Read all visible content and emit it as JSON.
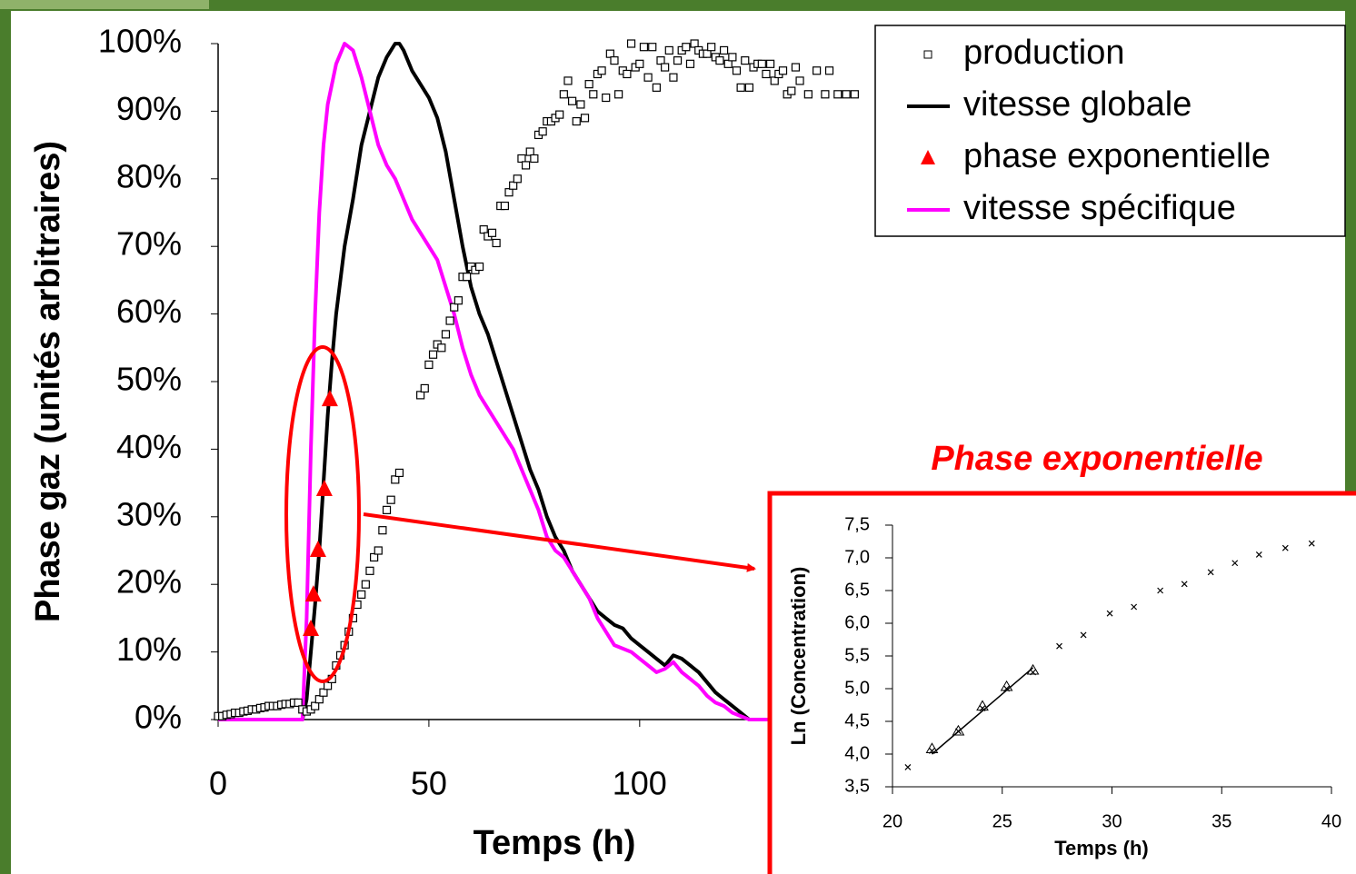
{
  "chart_data": [
    {
      "type": "line",
      "xlabel": "Temps (h)",
      "ylabel": "Phase gaz (unités arbitraires)",
      "xlim": [
        0,
        152
      ],
      "ylim": [
        0,
        100
      ],
      "xticks": [
        0,
        50,
        100
      ],
      "yticks": [
        {
          "value": 0,
          "label": "0%"
        },
        {
          "value": 10,
          "label": "10%"
        },
        {
          "value": 20,
          "label": "20%"
        },
        {
          "value": 30,
          "label": "30%"
        },
        {
          "value": 40,
          "label": "40%"
        },
        {
          "value": 50,
          "label": "50%"
        },
        {
          "value": 60,
          "label": "60%"
        },
        {
          "value": 70,
          "label": "70%"
        },
        {
          "value": 80,
          "label": "80%"
        },
        {
          "value": 90,
          "label": "90%"
        },
        {
          "value": 100,
          "label": "100%"
        }
      ],
      "legend": "top-right",
      "series": [
        {
          "name": "production",
          "type": "scatter",
          "marker": "square",
          "color": "#000000",
          "x": [
            0,
            1,
            2,
            3,
            4,
            5,
            6,
            7,
            8,
            9,
            10,
            11,
            12,
            13,
            14,
            15,
            16,
            17,
            18,
            19,
            20,
            21,
            22,
            23,
            24,
            25,
            26,
            27,
            28,
            29,
            30,
            31,
            32,
            33,
            34,
            35,
            36,
            37,
            38,
            39,
            40,
            41,
            42,
            43,
            48,
            49,
            50,
            51,
            52,
            53,
            54,
            55,
            56,
            57,
            58,
            59,
            60,
            61,
            62,
            63,
            64,
            65,
            66,
            67,
            68,
            69,
            70,
            71,
            72,
            73,
            74,
            75,
            76,
            77,
            78,
            79,
            80,
            81,
            82,
            83,
            84,
            85,
            86,
            87,
            88,
            89,
            90,
            91,
            92,
            93,
            94,
            95,
            96,
            97,
            98,
            99,
            100,
            101,
            102,
            103,
            104,
            105,
            106,
            107,
            108,
            109,
            110,
            111,
            112,
            113,
            114,
            115,
            116,
            117,
            118,
            119,
            120,
            121,
            122,
            123,
            124,
            125,
            126,
            127,
            128,
            129,
            130,
            131,
            132,
            133,
            134,
            135,
            136,
            137,
            138,
            140,
            142,
            144,
            145,
            147,
            149,
            151
          ],
          "values": [
            0.5,
            0.5,
            0.7,
            0.8,
            1,
            1,
            1.2,
            1.3,
            1.5,
            1.5,
            1.7,
            1.8,
            2,
            2,
            2,
            2.2,
            2.3,
            2.3,
            2.5,
            2.5,
            1.5,
            1.2,
            1.5,
            2,
            3,
            4,
            5,
            6,
            8,
            9.5,
            11,
            13,
            15,
            17,
            18.5,
            20,
            22,
            24,
            25,
            28,
            31,
            32.5,
            35.5,
            36.5,
            48,
            49,
            52.5,
            54,
            55.5,
            55,
            57,
            59,
            61,
            62,
            65.5,
            65.5,
            67,
            66.5,
            67,
            72.5,
            71.5,
            72,
            70.5,
            76,
            76,
            78,
            79,
            80,
            83,
            82,
            84,
            83,
            86.5,
            87,
            88.5,
            88.5,
            89,
            89.5,
            92.5,
            94.5,
            91.5,
            88.5,
            91,
            89,
            94,
            92.5,
            95.5,
            96,
            92,
            98.5,
            97.5,
            92.5,
            96,
            95.5,
            100,
            96.5,
            97,
            99.5,
            95,
            99.5,
            93.5,
            97.5,
            96.5,
            99,
            95,
            97.5,
            99,
            99.5,
            97,
            100,
            99,
            98.5,
            98.5,
            99.5,
            98,
            97.5,
            99,
            97,
            98,
            96,
            93.5,
            97.5,
            93.5,
            96.5,
            97,
            97,
            95.5,
            97,
            94.5,
            95.5,
            96,
            92.5,
            93,
            96.5,
            94.5,
            92.5,
            96,
            92.5,
            96,
            92.5,
            92.5,
            92.5
          ]
        },
        {
          "name": "vitesse globale",
          "type": "line",
          "color": "#000000",
          "x": [
            0,
            20,
            21,
            22,
            23,
            24,
            25,
            26,
            27,
            28,
            30,
            32,
            34,
            36,
            38,
            40,
            42,
            43,
            44,
            46,
            48,
            50,
            52,
            54,
            56,
            58,
            60,
            62,
            64,
            66,
            68,
            70,
            72,
            74,
            76,
            78,
            80,
            82,
            84,
            86,
            88,
            90,
            92,
            94,
            96,
            98,
            100,
            102,
            104,
            106,
            108,
            110,
            112,
            114,
            116,
            118,
            120,
            122,
            124,
            126,
            131
          ],
          "values": [
            0,
            0,
            3,
            10,
            17,
            25,
            35,
            45,
            53,
            60,
            70,
            77,
            85,
            90,
            95,
            98,
            100,
            100,
            99,
            96,
            94,
            92,
            89,
            84,
            77,
            70,
            64,
            60,
            57,
            53,
            49,
            45,
            41,
            37,
            34,
            30,
            27,
            25,
            22,
            20,
            18,
            16,
            15,
            14,
            13.5,
            12,
            11,
            10,
            9,
            8,
            9.5,
            9,
            8,
            7,
            5.5,
            4,
            3,
            2,
            1,
            0,
            0
          ]
        },
        {
          "name": "phase exponentielle",
          "type": "scatter",
          "marker": "triangle",
          "color": "#ff0000",
          "x": [
            22,
            22.6,
            23.7,
            25.2,
            26.5
          ],
          "values": [
            13.3,
            18.4,
            25,
            34,
            47.3
          ]
        },
        {
          "name": "vitesse spécifique",
          "type": "line",
          "color": "#ff00ff",
          "x": [
            0,
            20,
            21,
            22,
            23,
            24,
            25,
            26,
            28,
            30,
            32,
            34,
            36,
            38,
            40,
            42,
            44,
            46,
            48,
            50,
            52,
            54,
            56,
            58,
            60,
            62,
            64,
            66,
            68,
            70,
            72,
            74,
            76,
            78,
            80,
            82,
            84,
            86,
            88,
            90,
            92,
            94,
            96,
            98,
            100,
            102,
            104,
            106,
            108,
            110,
            112,
            114,
            116,
            118,
            120,
            122,
            124,
            126,
            131
          ],
          "values": [
            0,
            0,
            15,
            40,
            60,
            75,
            85,
            91,
            97,
            100,
            99,
            95,
            90,
            85,
            82,
            80,
            77,
            74,
            72,
            70,
            68,
            64,
            60,
            55,
            51,
            48,
            46,
            44,
            42,
            40,
            37,
            34,
            31,
            27,
            25,
            24,
            22,
            20,
            18,
            15,
            13,
            11,
            10.5,
            10,
            9,
            8,
            7,
            7.5,
            8.5,
            7,
            6,
            5,
            3.5,
            2.5,
            2,
            1,
            0.5,
            0,
            0
          ]
        }
      ]
    },
    {
      "type": "line",
      "title": "Phase exponentielle",
      "xlabel": "Temps (h)",
      "ylabel": "Ln (Concentration)",
      "xlim": [
        20,
        40
      ],
      "ylim": [
        3.5,
        7.5
      ],
      "xticks": [
        20,
        25,
        30,
        35,
        40
      ],
      "yticks": [
        {
          "value": 3.5,
          "label": "3,5"
        },
        {
          "value": 4,
          "label": "4,0"
        },
        {
          "value": 4.5,
          "label": "4,5"
        },
        {
          "value": 5,
          "label": "5,0"
        },
        {
          "value": 5.5,
          "label": "5,5"
        },
        {
          "value": 6,
          "label": "6,0"
        },
        {
          "value": 6.5,
          "label": "6,5"
        },
        {
          "value": 7,
          "label": "7,0"
        },
        {
          "value": 7.5,
          "label": "7,5"
        }
      ],
      "series": [
        {
          "type": "scatter",
          "marker": "cross",
          "color": "#000000",
          "x": [
            20.7,
            21.8,
            23,
            24.1,
            25.2,
            26.4,
            27.6,
            28.7,
            29.9,
            31,
            32.2,
            33.3,
            34.5,
            35.6,
            36.7,
            37.9,
            39.1
          ],
          "values": [
            3.8,
            4.05,
            4.35,
            4.7,
            5.0,
            5.25,
            5.65,
            5.82,
            6.15,
            6.25,
            6.5,
            6.6,
            6.78,
            6.92,
            7.05,
            7.15,
            7.22
          ]
        },
        {
          "type": "scatter",
          "marker": "open-triangle",
          "color": "#000000",
          "x": [
            21.8,
            23,
            24.1,
            25.2,
            26.4
          ],
          "values": [
            4.08,
            4.35,
            4.73,
            5.03,
            5.28
          ]
        },
        {
          "type": "line",
          "color": "#000000",
          "x": [
            21.8,
            26.4
          ],
          "values": [
            4.0,
            5.32
          ]
        }
      ]
    }
  ]
}
